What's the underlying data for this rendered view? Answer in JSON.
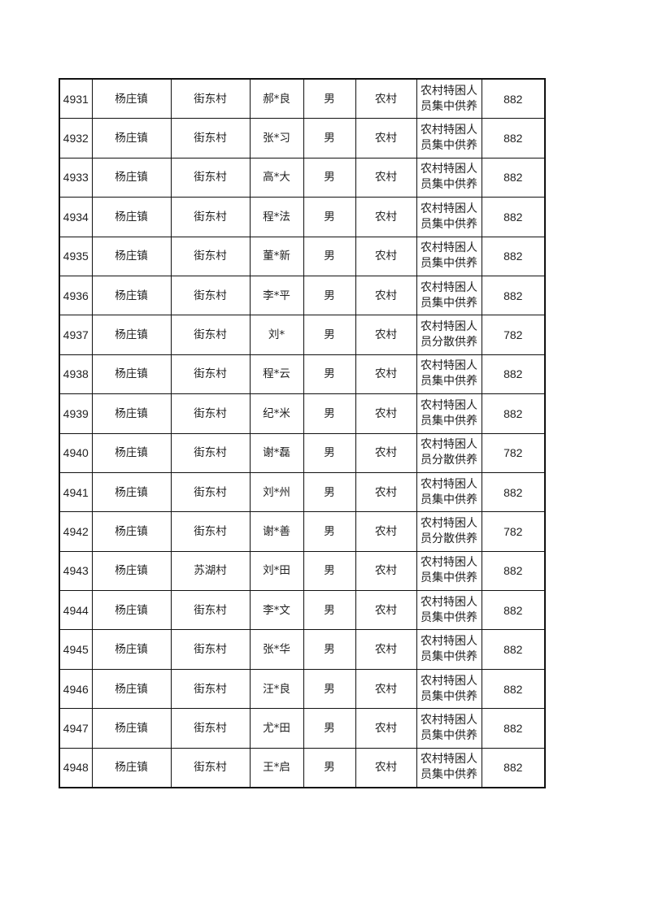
{
  "rows": [
    [
      "4931",
      "杨庄镇",
      "街东村",
      "郝*良",
      "男",
      "农村",
      "农村特困人员集中供养",
      "882"
    ],
    [
      "4932",
      "杨庄镇",
      "街东村",
      "张*习",
      "男",
      "农村",
      "农村特困人员集中供养",
      "882"
    ],
    [
      "4933",
      "杨庄镇",
      "街东村",
      "高*大",
      "男",
      "农村",
      "农村特困人员集中供养",
      "882"
    ],
    [
      "4934",
      "杨庄镇",
      "街东村",
      "程*法",
      "男",
      "农村",
      "农村特困人员集中供养",
      "882"
    ],
    [
      "4935",
      "杨庄镇",
      "街东村",
      "董*新",
      "男",
      "农村",
      "农村特困人员集中供养",
      "882"
    ],
    [
      "4936",
      "杨庄镇",
      "街东村",
      "李*平",
      "男",
      "农村",
      "农村特困人员集中供养",
      "882"
    ],
    [
      "4937",
      "杨庄镇",
      "街东村",
      "刘*",
      "男",
      "农村",
      "农村特困人员分散供养",
      "782"
    ],
    [
      "4938",
      "杨庄镇",
      "街东村",
      "程*云",
      "男",
      "农村",
      "农村特困人员集中供养",
      "882"
    ],
    [
      "4939",
      "杨庄镇",
      "街东村",
      "纪*米",
      "男",
      "农村",
      "农村特困人员集中供养",
      "882"
    ],
    [
      "4940",
      "杨庄镇",
      "街东村",
      "谢*磊",
      "男",
      "农村",
      "农村特困人员分散供养",
      "782"
    ],
    [
      "4941",
      "杨庄镇",
      "街东村",
      "刘*州",
      "男",
      "农村",
      "农村特困人员集中供养",
      "882"
    ],
    [
      "4942",
      "杨庄镇",
      "街东村",
      "谢*善",
      "男",
      "农村",
      "农村特困人员分散供养",
      "782"
    ],
    [
      "4943",
      "杨庄镇",
      "苏湖村",
      "刘*田",
      "男",
      "农村",
      "农村特困人员集中供养",
      "882"
    ],
    [
      "4944",
      "杨庄镇",
      "街东村",
      "李*文",
      "男",
      "农村",
      "农村特困人员集中供养",
      "882"
    ],
    [
      "4945",
      "杨庄镇",
      "街东村",
      "张*华",
      "男",
      "农村",
      "农村特困人员集中供养",
      "882"
    ],
    [
      "4946",
      "杨庄镇",
      "街东村",
      "汪*良",
      "男",
      "农村",
      "农村特困人员集中供养",
      "882"
    ],
    [
      "4947",
      "杨庄镇",
      "街东村",
      "尤*田",
      "男",
      "农村",
      "农村特困人员集中供养",
      "882"
    ],
    [
      "4948",
      "杨庄镇",
      "街东村",
      "王*启",
      "男",
      "农村",
      "农村特困人员集中供养",
      "882"
    ]
  ]
}
